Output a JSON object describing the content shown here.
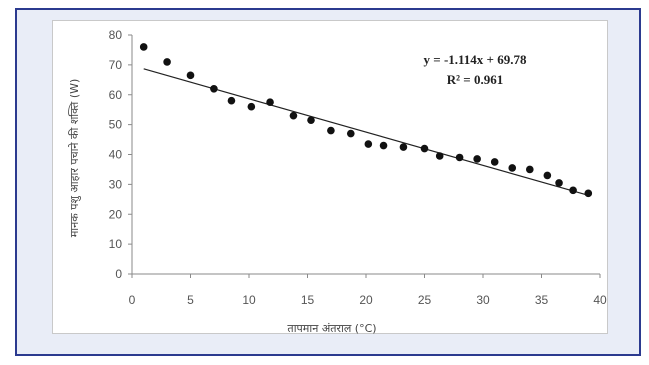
{
  "chart_data": {
    "type": "scatter",
    "title": "",
    "xlabel": "तापमान अंतराल (°C)",
    "ylabel": "मानक पशु आहार पचाने की शक्ति (W)",
    "xlim": [
      0,
      40
    ],
    "ylim": [
      0,
      80
    ],
    "xticks": [
      "0",
      "5",
      "10",
      "15",
      "20",
      "25",
      "30",
      "35",
      "40"
    ],
    "yticks": [
      "0",
      "10",
      "20",
      "30",
      "40",
      "50",
      "60",
      "70",
      "80"
    ],
    "grid": false,
    "legend": "none",
    "marker_color": "#111111",
    "line_color": "#222222",
    "series": [
      {
        "points": [
          [
            1.0,
            76
          ],
          [
            3.0,
            71
          ],
          [
            5.0,
            66.5
          ],
          [
            7.0,
            62
          ],
          [
            8.5,
            58
          ],
          [
            10.2,
            56
          ],
          [
            11.8,
            57.5
          ],
          [
            13.8,
            53
          ],
          [
            15.3,
            51.5
          ],
          [
            17.0,
            48
          ],
          [
            18.7,
            47
          ],
          [
            20.2,
            43.5
          ],
          [
            21.5,
            43
          ],
          [
            23.2,
            42.5
          ],
          [
            25.0,
            42
          ],
          [
            26.3,
            39.5
          ],
          [
            28.0,
            39
          ],
          [
            29.5,
            38.5
          ],
          [
            31.0,
            37.5
          ],
          [
            32.5,
            35.5
          ],
          [
            34.0,
            35
          ],
          [
            35.5,
            33
          ],
          [
            36.5,
            30.5
          ],
          [
            37.7,
            28
          ],
          [
            39.0,
            27
          ]
        ]
      }
    ],
    "trendline": {
      "slope": -1.114,
      "intercept": 69.78,
      "x_range": [
        1,
        39
      ],
      "equation": "y = -1.114x + 69.78",
      "r2": "R² = 0.961"
    }
  }
}
